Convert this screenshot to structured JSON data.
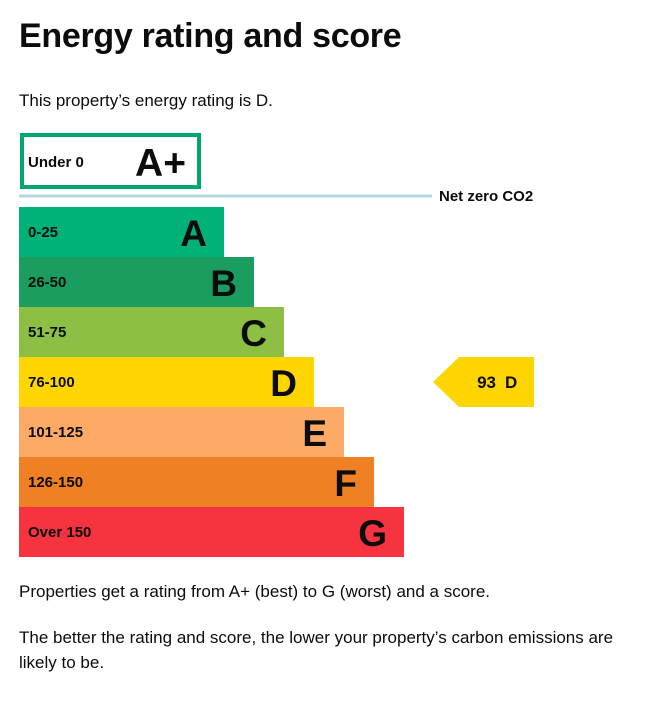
{
  "page": {
    "title": "Energy rating and score",
    "intro": "This property’s energy rating is D.",
    "footer_1": "Properties get a rating from A+ (best) to G (worst) and a score.",
    "footer_2": "The better the rating and score, the lower your property’s carbon emissions are likely to be."
  },
  "chart_data": {
    "type": "bar",
    "top_band": {
      "range": "Under 0",
      "letter": "A+",
      "color": "#00a76d"
    },
    "net_zero_label": "Net zero CO2",
    "net_zero_color": "#b5d7e6",
    "bands": [
      {
        "range": "0-25",
        "letter": "A",
        "color": "#00b178"
      },
      {
        "range": "26-50",
        "letter": "B",
        "color": "#1a9d5f"
      },
      {
        "range": "51-75",
        "letter": "C",
        "color": "#8dbf45"
      },
      {
        "range": "76-100",
        "letter": "D",
        "color": "#ffd500"
      },
      {
        "range": "101-125",
        "letter": "E",
        "color": "#fcaa65"
      },
      {
        "range": "126-150",
        "letter": "F",
        "color": "#ef8023"
      },
      {
        "range": "Over 150",
        "letter": "G",
        "color": "#f6333f"
      }
    ],
    "current": {
      "score": "93",
      "letter": "D",
      "band": "D",
      "color": "#ffd500"
    }
  }
}
